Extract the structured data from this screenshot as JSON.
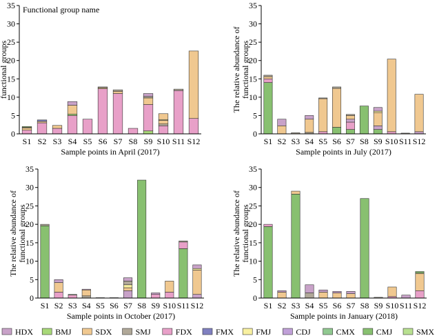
{
  "chart_data": {
    "type": "bar",
    "stacked": true,
    "categories": [
      "S1",
      "S2",
      "S3",
      "S4",
      "S5",
      "S6",
      "S7",
      "S8",
      "S9",
      "S10",
      "S11",
      "S12"
    ],
    "ylim": [
      0,
      35
    ],
    "yticks": [
      0,
      5,
      10,
      15,
      20,
      25,
      30,
      35
    ],
    "grid": false,
    "legend_placement": "bottom",
    "legend": [
      {
        "name": "HDX",
        "color": "#c8a2c8"
      },
      {
        "name": "BMJ",
        "color": "#a8d878"
      },
      {
        "name": "SDX",
        "color": "#f0c890"
      },
      {
        "name": "SMJ",
        "color": "#b0a898"
      },
      {
        "name": "FDX",
        "color": "#e8a0c8"
      },
      {
        "name": "FMX",
        "color": "#8080c0"
      },
      {
        "name": "FMJ",
        "color": "#f8f0a0"
      },
      {
        "name": "CDJ",
        "color": "#c0a0d8"
      },
      {
        "name": "CMX",
        "color": "#90c890"
      },
      {
        "name": "CMJ",
        "color": "#88c070"
      },
      {
        "name": "SMX",
        "color": "#b8e090"
      }
    ],
    "panels": [
      {
        "xlabel": "Sample points in April (2017)",
        "ylabel": "The relative abundance of functional groups",
        "annotation": "Functional group name",
        "stacks": [
          [
            [
              "FDX",
              1.0
            ],
            [
              "SDX",
              0.6
            ],
            [
              "FMJ",
              0.2
            ],
            [
              "BMJ",
              0.2
            ]
          ],
          [
            [
              "FDX",
              3.0
            ],
            [
              "SDX",
              0.4
            ],
            [
              "FMX",
              0.4
            ]
          ],
          [
            [
              "FDX",
              1.5
            ],
            [
              "SDX",
              0.8
            ]
          ],
          [
            [
              "FDX",
              5.0
            ],
            [
              "BMJ",
              0.4
            ],
            [
              "SDX",
              2.4
            ],
            [
              "HDX",
              1.0
            ]
          ],
          [
            [
              "FDX",
              4.0
            ]
          ],
          [
            [
              "FDX",
              12.3
            ],
            [
              "SDX",
              0.3
            ],
            [
              "SMJ",
              0.2
            ]
          ],
          [
            [
              "FDX",
              11.0
            ],
            [
              "SDX",
              0.6
            ],
            [
              "SMJ",
              0.4
            ]
          ],
          [
            [
              "FDX",
              1.5
            ]
          ],
          [
            [
              "BMJ",
              0.8
            ],
            [
              "FDX",
              7.2
            ],
            [
              "SDX",
              1.8
            ],
            [
              "SMJ",
              0.4
            ],
            [
              "HDX",
              0.8
            ]
          ],
          [
            [
              "FDX",
              2.2
            ],
            [
              "SMJ",
              0.5
            ],
            [
              "SDX",
              1.0
            ],
            [
              "FMJ",
              0.2
            ],
            [
              "SDX",
              1.6
            ]
          ],
          [
            [
              "FDX",
              11.8
            ],
            [
              "SMJ",
              0.4
            ]
          ],
          [
            [
              "FDX",
              4.2
            ],
            [
              "SDX",
              18.4
            ]
          ]
        ]
      },
      {
        "xlabel": "Sample points in July (2017)",
        "ylabel": "The relative abundance of functional groups",
        "stacks": [
          [
            [
              "CMJ",
              14.0
            ],
            [
              "FDX",
              1.0
            ],
            [
              "SDX",
              0.6
            ],
            [
              "SMJ",
              0.4
            ]
          ],
          [
            [
              "SDX",
              2.2
            ],
            [
              "HDX",
              1.8
            ]
          ],
          [
            [
              "SMJ",
              0.3
            ]
          ],
          [
            [
              "SMJ",
              0.4
            ],
            [
              "SDX",
              3.6
            ],
            [
              "HDX",
              1.0
            ]
          ],
          [
            [
              "FDX",
              0.6
            ],
            [
              "SDX",
              9.0
            ],
            [
              "SMJ",
              0.2
            ]
          ],
          [
            [
              "CMJ",
              1.8
            ],
            [
              "SDX",
              10.6
            ],
            [
              "SMJ",
              0.4
            ]
          ],
          [
            [
              "CMJ",
              1.2
            ],
            [
              "FDX",
              2.0
            ],
            [
              "HDX",
              0.8
            ],
            [
              "SDX",
              1.0
            ],
            [
              "SMJ",
              0.3
            ]
          ],
          [
            [
              "CMJ",
              7.6
            ]
          ],
          [
            [
              "CMJ",
              1.2
            ],
            [
              "HDX",
              1.0
            ],
            [
              "SDX",
              3.6
            ],
            [
              "FMJ",
              0.4
            ],
            [
              "HDX",
              1.0
            ]
          ],
          [
            [
              "FDX",
              0.6
            ],
            [
              "SDX",
              19.8
            ]
          ],
          [
            [
              "SMJ",
              0.2
            ]
          ],
          [
            [
              "HDX",
              0.6
            ],
            [
              "SDX",
              10.2
            ]
          ]
        ]
      },
      {
        "xlabel": "Sample points in October (2017)",
        "ylabel": "The relative abundance of functional groups",
        "stacks": [
          [
            [
              "CMJ",
              19.6
            ],
            [
              "SMJ",
              0.4
            ]
          ],
          [
            [
              "FDX",
              1.6
            ],
            [
              "SDX",
              2.6
            ],
            [
              "HDX",
              0.8
            ]
          ],
          [
            [
              "FDX",
              0.8
            ],
            [
              "SMJ",
              0.2
            ]
          ],
          [
            [
              "SMJ",
              0.6
            ],
            [
              "SDX",
              1.6
            ],
            [
              "HDX",
              0.2
            ]
          ],
          [
            [
              "SMJ",
              0.1
            ]
          ],
          [
            [
              "SMJ",
              0.1
            ]
          ],
          [
            [
              "HDX",
              2.0
            ],
            [
              "SDX",
              0.8
            ],
            [
              "FMJ",
              0.8
            ],
            [
              "SMJ",
              1.0
            ],
            [
              "HDX",
              0.9
            ]
          ],
          [
            [
              "CMJ",
              32.0
            ]
          ],
          [
            [
              "FDX",
              1.0
            ],
            [
              "HDX",
              0.4
            ]
          ],
          [
            [
              "FDX",
              1.6
            ],
            [
              "SDX",
              3.0
            ]
          ],
          [
            [
              "CMJ",
              13.4
            ],
            [
              "FDX",
              1.8
            ],
            [
              "SMJ",
              0.3
            ]
          ],
          [
            [
              "HDX",
              1.0
            ],
            [
              "SDX",
              6.6
            ],
            [
              "FMJ",
              0.4
            ],
            [
              "HDX",
              1.0
            ]
          ]
        ]
      },
      {
        "xlabel": "Sample points in January (2018)",
        "ylabel": "The relative abundance of functional groups",
        "stacks": [
          [
            [
              "CMJ",
              19.4
            ],
            [
              "FDX",
              0.6
            ]
          ],
          [
            [
              "SDX",
              1.6
            ],
            [
              "HDX",
              0.4
            ]
          ],
          [
            [
              "CMJ",
              28.2
            ],
            [
              "SDX",
              0.8
            ]
          ],
          [
            [
              "SMJ",
              1.4
            ],
            [
              "HDX",
              2.2
            ]
          ],
          [
            [
              "SDX",
              1.6
            ],
            [
              "HDX",
              0.6
            ]
          ],
          [
            [
              "SDX",
              1.4
            ],
            [
              "HDX",
              0.4
            ]
          ],
          [
            [
              "SDX",
              1.2
            ],
            [
              "HDX",
              0.6
            ]
          ],
          [
            [
              "CMJ",
              27.0
            ]
          ],
          [
            [
              "SMJ",
              0.2
            ]
          ],
          [
            [
              "FDX",
              0.4
            ],
            [
              "SDX",
              2.6
            ]
          ],
          [
            [
              "HDX",
              0.8
            ]
          ],
          [
            [
              "FDX",
              2.0
            ],
            [
              "SDX",
              4.6
            ],
            [
              "FMJ",
              0.2
            ],
            [
              "CMJ",
              0.4
            ]
          ]
        ]
      }
    ]
  }
}
